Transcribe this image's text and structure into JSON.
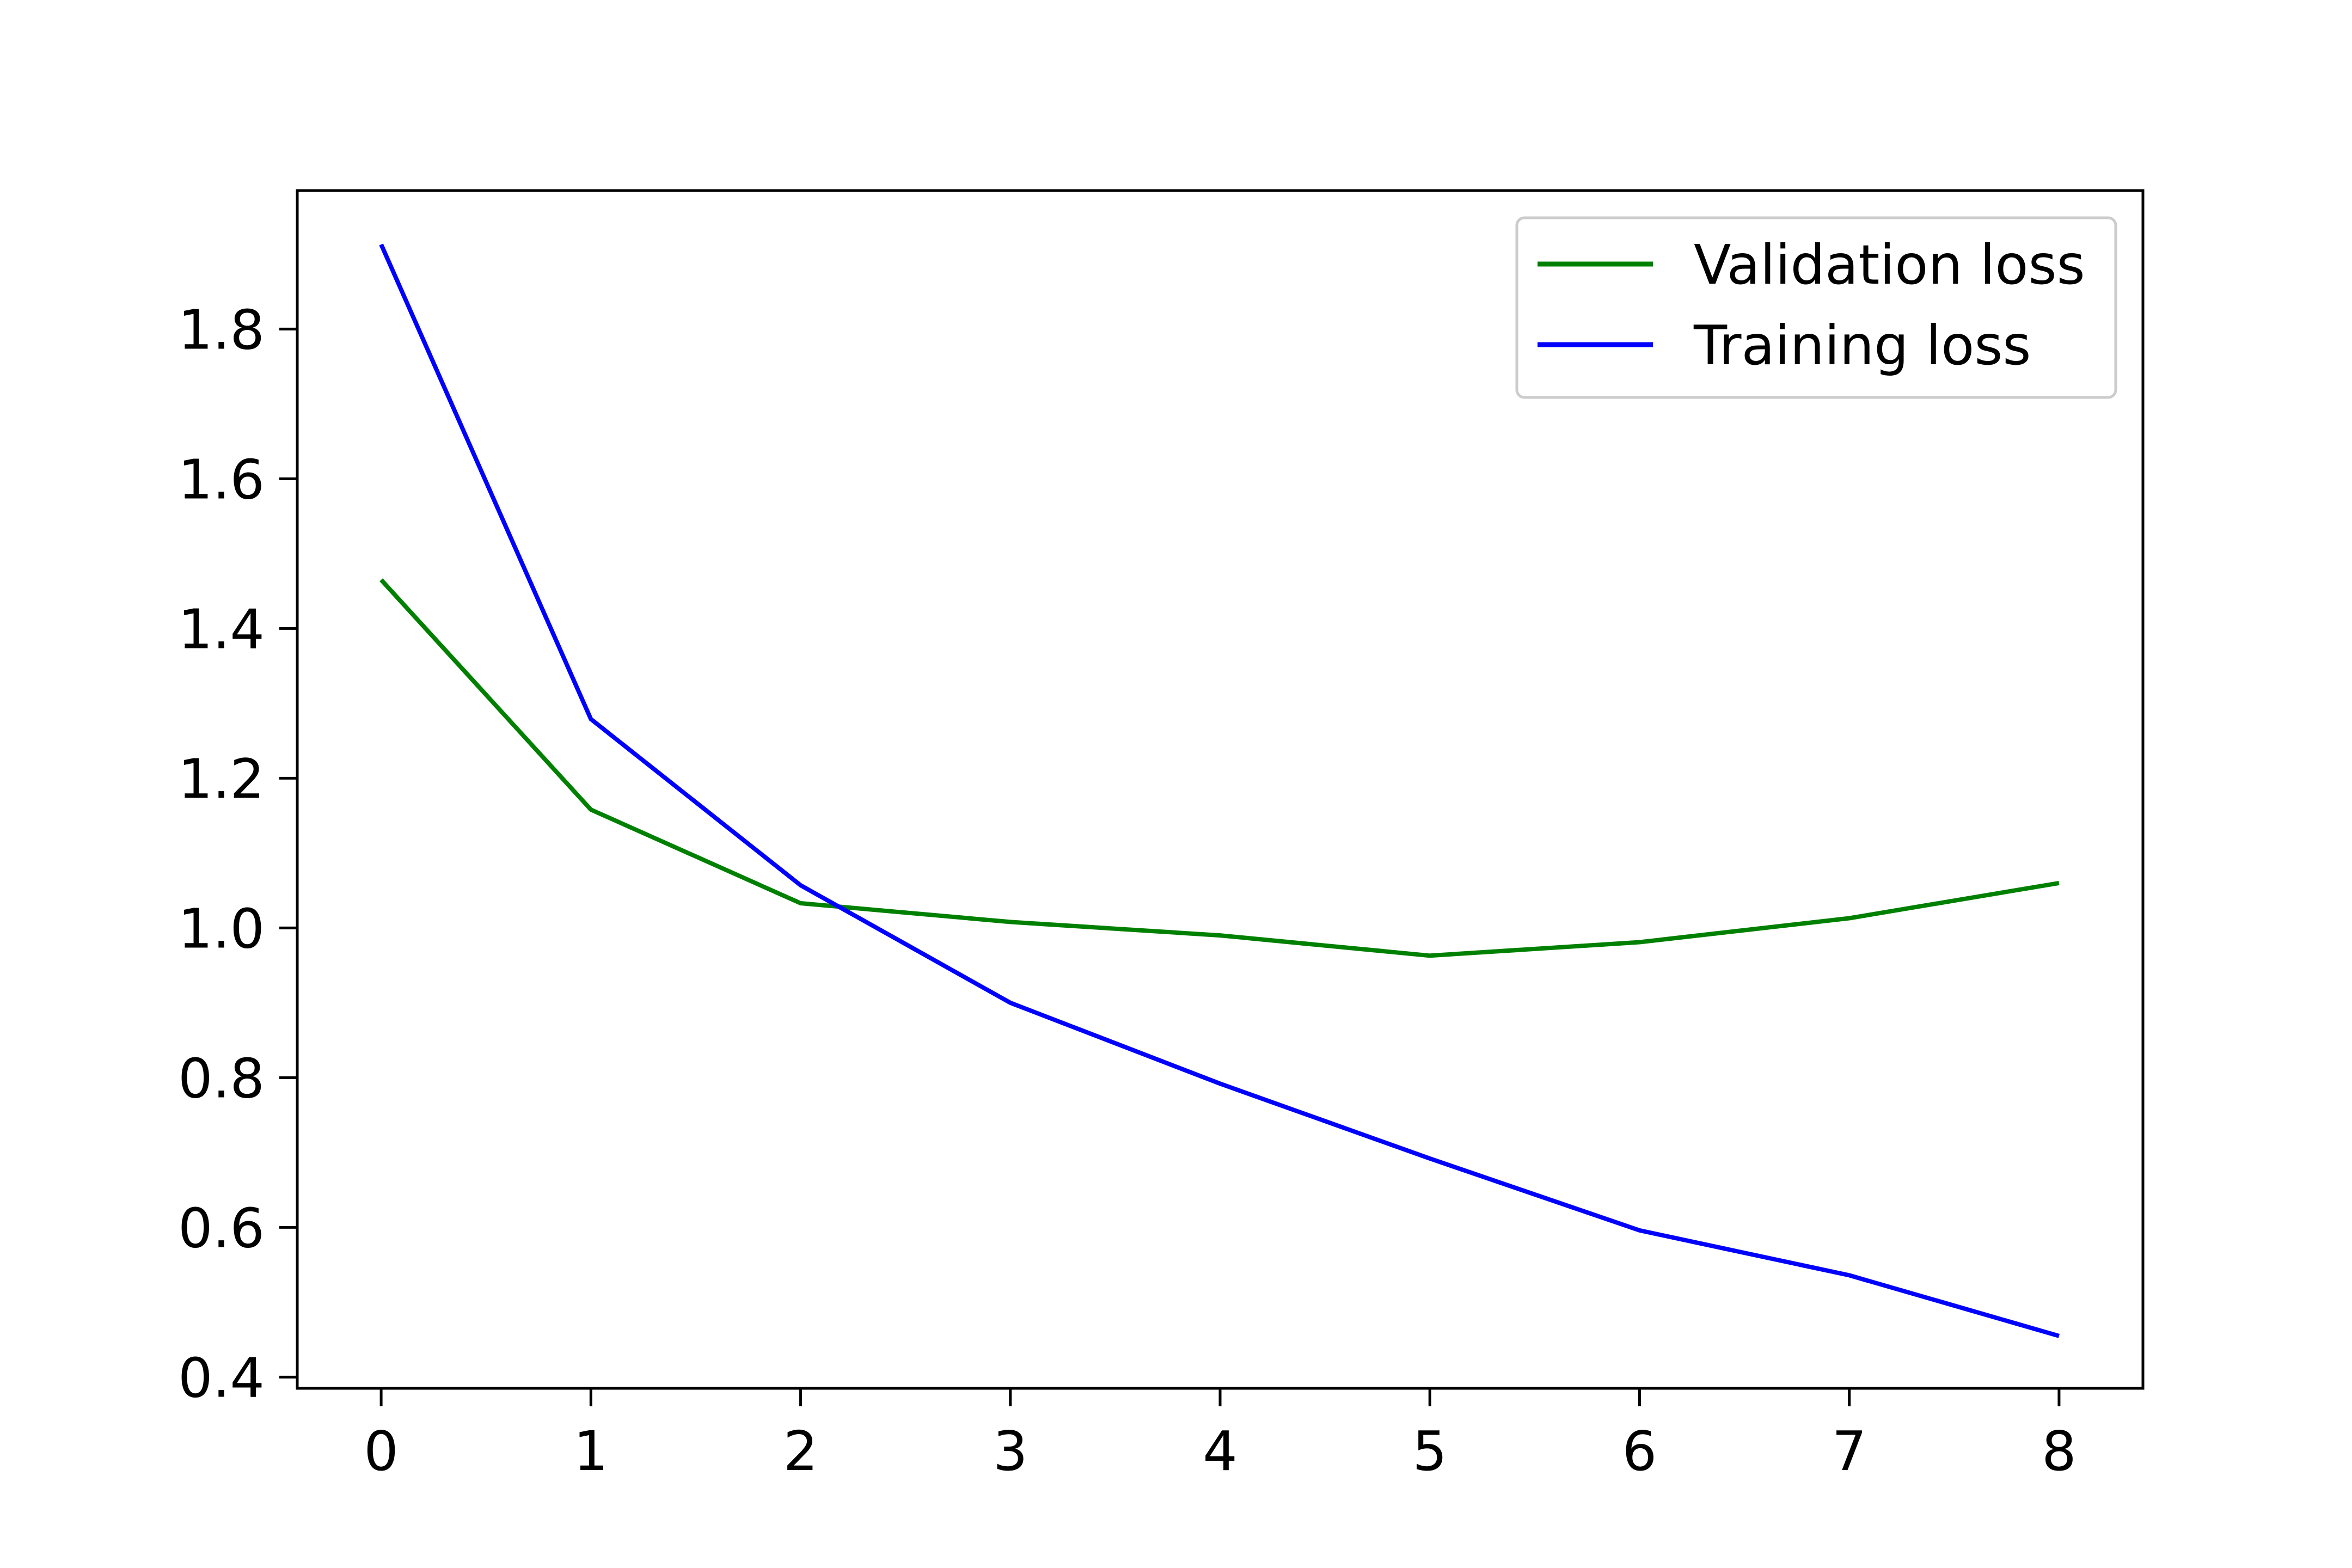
{
  "chart_data": {
    "type": "line",
    "x": [
      0,
      1,
      2,
      3,
      4,
      5,
      6,
      7,
      8
    ],
    "series": [
      {
        "name": "Validation loss",
        "color": "#008000",
        "values": [
          1.465,
          1.158,
          1.033,
          1.008,
          0.99,
          0.963,
          0.981,
          1.013,
          1.06
        ]
      },
      {
        "name": "Training loss",
        "color": "#0000ff",
        "values": [
          1.913,
          1.279,
          1.057,
          0.9,
          0.792,
          0.692,
          0.596,
          0.536,
          0.455
        ]
      }
    ],
    "title": "",
    "xlabel": "",
    "ylabel": "",
    "xlim": [
      -0.4,
      8.4
    ],
    "ylim": [
      0.385,
      1.985
    ],
    "xticks": [
      "0",
      "1",
      "2",
      "3",
      "4",
      "5",
      "6",
      "7",
      "8"
    ],
    "yticks": [
      "0.4",
      "0.6",
      "0.8",
      "1.0",
      "1.2",
      "1.4",
      "1.6",
      "1.8"
    ],
    "grid": false,
    "legend_position": "upper right"
  }
}
